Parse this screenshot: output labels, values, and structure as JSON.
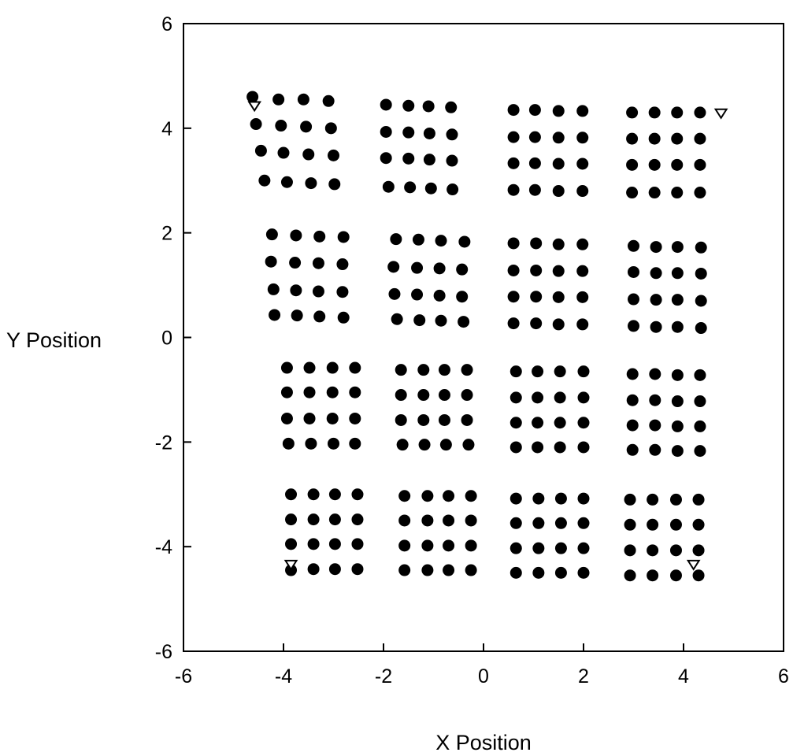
{
  "chart_data": {
    "type": "scatter",
    "xlabel": "X Position",
    "ylabel": "Y Position",
    "xlim": [
      -6,
      6
    ],
    "ylim": [
      -6,
      6
    ],
    "xticks": [
      "-6",
      "-4",
      "-2",
      "0",
      "2",
      "4",
      "6"
    ],
    "yticks": [
      "6",
      "4",
      "2",
      "0",
      "-2",
      "-4",
      "-6"
    ],
    "grid": false,
    "legend": "none",
    "series": [
      {
        "marker": "filled-circle",
        "color": "#000000",
        "x": [
          -4.62,
          -4.1,
          -3.6,
          -3.1,
          -4.55,
          -4.05,
          -3.55,
          -3.05,
          -4.45,
          -4.0,
          -3.5,
          -3.0,
          -4.38,
          -3.93,
          -3.45,
          -2.98,
          -1.95,
          -1.5,
          -1.1,
          -0.65,
          -1.95,
          -1.5,
          -1.08,
          -0.63,
          -1.95,
          -1.5,
          -1.08,
          -0.63,
          -1.9,
          -1.47,
          -1.05,
          -0.62,
          0.6,
          1.03,
          1.5,
          1.98,
          0.6,
          1.03,
          1.5,
          1.98,
          0.6,
          1.03,
          1.5,
          1.98,
          0.6,
          1.03,
          1.5,
          1.98,
          2.97,
          3.42,
          3.87,
          4.33,
          2.97,
          3.42,
          3.87,
          4.33,
          2.97,
          3.42,
          3.87,
          4.33,
          2.97,
          3.42,
          3.87,
          4.33,
          -4.23,
          -3.75,
          -3.28,
          -2.8,
          -4.25,
          -3.77,
          -3.3,
          -2.82,
          -4.2,
          -3.75,
          -3.3,
          -2.82,
          -4.18,
          -3.73,
          -3.28,
          -2.8,
          -1.75,
          -1.3,
          -0.85,
          -0.38,
          -1.8,
          -1.33,
          -0.88,
          -0.43,
          -1.78,
          -1.33,
          -0.88,
          -0.43,
          -1.73,
          -1.28,
          -0.85,
          -0.4,
          0.6,
          1.05,
          1.5,
          1.98,
          0.6,
          1.05,
          1.5,
          1.98,
          0.6,
          1.05,
          1.5,
          1.98,
          0.6,
          1.05,
          1.5,
          1.98,
          3.0,
          3.45,
          3.88,
          4.35,
          3.0,
          3.45,
          3.88,
          4.35,
          3.0,
          3.45,
          3.88,
          4.35,
          3.0,
          3.45,
          3.88,
          4.35,
          -3.93,
          -3.48,
          -3.02,
          -2.57,
          -3.93,
          -3.48,
          -3.02,
          -2.57,
          -3.93,
          -3.48,
          -3.02,
          -2.57,
          -3.9,
          -3.45,
          -3.0,
          -2.57,
          -1.65,
          -1.2,
          -0.78,
          -0.33,
          -1.65,
          -1.2,
          -0.78,
          -0.33,
          -1.65,
          -1.2,
          -0.78,
          -0.33,
          -1.62,
          -1.18,
          -0.75,
          -0.3,
          0.65,
          1.08,
          1.53,
          2.0,
          0.65,
          1.08,
          1.53,
          2.0,
          0.65,
          1.08,
          1.53,
          2.0,
          0.65,
          1.08,
          1.53,
          2.0,
          2.98,
          3.43,
          3.88,
          4.33,
          2.98,
          3.43,
          3.88,
          4.33,
          2.98,
          3.43,
          3.88,
          4.33,
          2.98,
          3.43,
          3.88,
          4.33,
          -3.85,
          -3.4,
          -2.97,
          -2.52,
          -3.85,
          -3.4,
          -2.97,
          -2.52,
          -3.85,
          -3.4,
          -2.97,
          -2.52,
          -3.85,
          -3.4,
          -2.97,
          -2.52,
          -1.58,
          -1.12,
          -0.7,
          -0.25,
          -1.58,
          -1.12,
          -0.7,
          -0.25,
          -1.58,
          -1.12,
          -0.7,
          -0.25,
          -1.58,
          -1.12,
          -0.7,
          -0.25,
          0.65,
          1.1,
          1.55,
          2.0,
          0.65,
          1.1,
          1.55,
          2.0,
          0.65,
          1.1,
          1.55,
          2.0,
          0.65,
          1.1,
          1.55,
          2.0,
          2.93,
          3.38,
          3.85,
          4.3,
          2.93,
          3.38,
          3.85,
          4.3,
          2.93,
          3.38,
          3.85,
          4.3,
          2.93,
          3.38,
          3.85,
          4.3
        ],
        "y": [
          4.6,
          4.55,
          4.55,
          4.52,
          4.08,
          4.05,
          4.03,
          4.0,
          3.57,
          3.53,
          3.5,
          3.48,
          3.0,
          2.97,
          2.95,
          2.93,
          4.45,
          4.43,
          4.42,
          4.4,
          3.93,
          3.92,
          3.9,
          3.88,
          3.43,
          3.42,
          3.4,
          3.38,
          2.88,
          2.87,
          2.85,
          2.83,
          4.35,
          4.35,
          4.33,
          4.33,
          3.83,
          3.83,
          3.82,
          3.82,
          3.33,
          3.33,
          3.32,
          3.32,
          2.82,
          2.82,
          2.8,
          2.8,
          4.3,
          4.3,
          4.3,
          4.3,
          3.8,
          3.8,
          3.8,
          3.8,
          3.3,
          3.3,
          3.3,
          3.3,
          2.77,
          2.77,
          2.77,
          2.77,
          1.97,
          1.95,
          1.93,
          1.92,
          1.45,
          1.43,
          1.42,
          1.4,
          0.92,
          0.9,
          0.88,
          0.87,
          0.43,
          0.42,
          0.4,
          0.38,
          1.88,
          1.87,
          1.85,
          1.83,
          1.35,
          1.33,
          1.32,
          1.3,
          0.83,
          0.82,
          0.8,
          0.78,
          0.35,
          0.33,
          0.32,
          0.3,
          1.8,
          1.8,
          1.78,
          1.78,
          1.28,
          1.28,
          1.27,
          1.27,
          0.78,
          0.78,
          0.77,
          0.77,
          0.27,
          0.27,
          0.25,
          0.25,
          1.75,
          1.73,
          1.73,
          1.72,
          1.25,
          1.23,
          1.23,
          1.22,
          0.73,
          0.72,
          0.72,
          0.7,
          0.22,
          0.2,
          0.2,
          0.18,
          -0.58,
          -0.58,
          -0.58,
          -0.58,
          -1.05,
          -1.05,
          -1.05,
          -1.05,
          -1.55,
          -1.55,
          -1.55,
          -1.55,
          -2.03,
          -2.03,
          -2.03,
          -2.03,
          -0.62,
          -0.62,
          -0.62,
          -0.62,
          -1.1,
          -1.1,
          -1.1,
          -1.1,
          -1.58,
          -1.58,
          -1.58,
          -1.58,
          -2.05,
          -2.05,
          -2.05,
          -2.05,
          -0.65,
          -0.65,
          -0.65,
          -0.65,
          -1.15,
          -1.15,
          -1.15,
          -1.15,
          -1.63,
          -1.63,
          -1.63,
          -1.63,
          -2.1,
          -2.1,
          -2.1,
          -2.1,
          -0.7,
          -0.7,
          -0.72,
          -0.72,
          -1.2,
          -1.2,
          -1.22,
          -1.22,
          -1.68,
          -1.68,
          -1.7,
          -1.7,
          -2.15,
          -2.15,
          -2.17,
          -2.17,
          -3.0,
          -3.0,
          -3.0,
          -3.0,
          -3.48,
          -3.48,
          -3.48,
          -3.48,
          -3.95,
          -3.95,
          -3.95,
          -3.95,
          -4.45,
          -4.43,
          -4.43,
          -4.43,
          -3.03,
          -3.03,
          -3.03,
          -3.03,
          -3.5,
          -3.5,
          -3.5,
          -3.5,
          -3.98,
          -3.98,
          -3.98,
          -3.98,
          -4.45,
          -4.45,
          -4.45,
          -4.45,
          -3.08,
          -3.08,
          -3.08,
          -3.08,
          -3.55,
          -3.55,
          -3.55,
          -3.55,
          -4.03,
          -4.03,
          -4.03,
          -4.03,
          -4.5,
          -4.5,
          -4.5,
          -4.5,
          -3.1,
          -3.1,
          -3.1,
          -3.1,
          -3.58,
          -3.58,
          -3.58,
          -3.58,
          -4.07,
          -4.07,
          -4.07,
          -4.07,
          -4.55,
          -4.55,
          -4.55,
          -4.55
        ]
      },
      {
        "marker": "open-triangle-down",
        "color": "#000000",
        "x": [
          -4.58,
          4.75,
          -3.85,
          4.2
        ],
        "y": [
          4.42,
          4.28,
          -4.35,
          -4.35
        ]
      }
    ]
  }
}
